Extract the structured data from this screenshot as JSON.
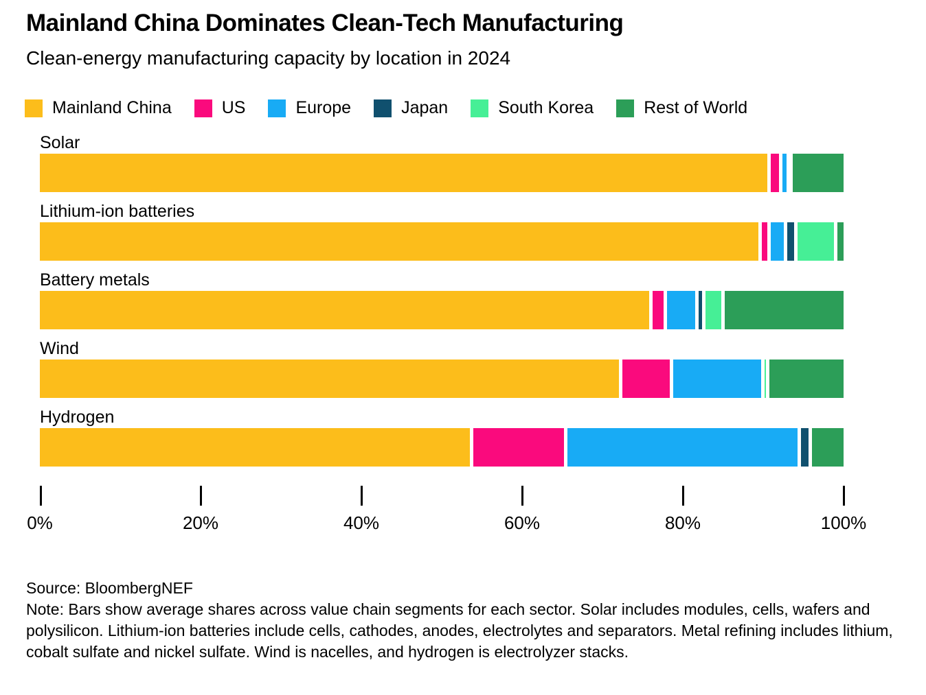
{
  "title": "Mainland China Dominates Clean-Tech Manufacturing",
  "subtitle": "Clean-energy manufacturing capacity by location in 2024",
  "chart_data": {
    "type": "bar",
    "orientation": "horizontal-stacked",
    "unit": "%",
    "title": "Mainland China Dominates Clean-Tech Manufacturing",
    "subtitle": "Clean-energy manufacturing capacity by location in 2024",
    "legend_position": "top",
    "grid": false,
    "categories": [
      "Solar",
      "Lithium-ion batteries",
      "Battery metals",
      "Wind",
      "Hydrogen"
    ],
    "series": [
      {
        "name": "Mainland China",
        "color": "#FCBD1B",
        "values": [
          90.9,
          89.8,
          76.2,
          72.5,
          53.9
        ]
      },
      {
        "name": "US",
        "color": "#FA0A7D",
        "values": [
          1.5,
          1.1,
          1.8,
          6.3,
          11.7
        ]
      },
      {
        "name": "Europe",
        "color": "#18ABF5",
        "values": [
          0.9,
          2.1,
          4.0,
          11.4,
          29.1
        ]
      },
      {
        "name": "Japan",
        "color": "#10506E",
        "values": [
          0.2,
          1.3,
          0.8,
          0,
          1.4
        ]
      },
      {
        "name": "South Korea",
        "color": "#46EF96",
        "values": [
          0.2,
          4.9,
          2.4,
          0.6,
          0
        ]
      },
      {
        "name": "Rest of World",
        "color": "#2C9E58",
        "values": [
          6.3,
          0.8,
          14.8,
          9.2,
          3.9
        ]
      }
    ],
    "x_axis": {
      "min": 0,
      "max": 100,
      "tick_step": 20,
      "ticks": [
        "0%",
        "20%",
        "40%",
        "60%",
        "80%",
        "100%"
      ]
    }
  },
  "footer": {
    "source": "Source: BloombergNEF",
    "note": "Note: Bars show average shares across value chain segments for each sector. Solar includes modules, cells, wafers and polysilicon. Lithium-ion batteries include cells, cathodes, anodes, electrolytes and separators. Metal refining includes lithium, cobalt sulfate and nickel sulfate. Wind is nacelles, and hydrogen is electrolyzer stacks."
  }
}
